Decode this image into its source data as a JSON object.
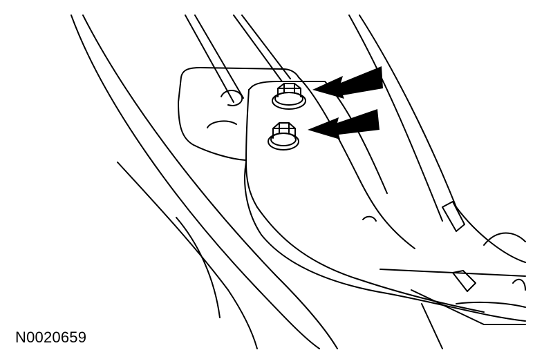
{
  "figure": {
    "reference_code": "N0020659",
    "components": [
      "upper-bolt",
      "lower-bolt",
      "upper-arrow",
      "lower-arrow",
      "mounting-bracket",
      "vehicle-frame"
    ],
    "line_color": "#000000",
    "background_color": "#ffffff"
  }
}
